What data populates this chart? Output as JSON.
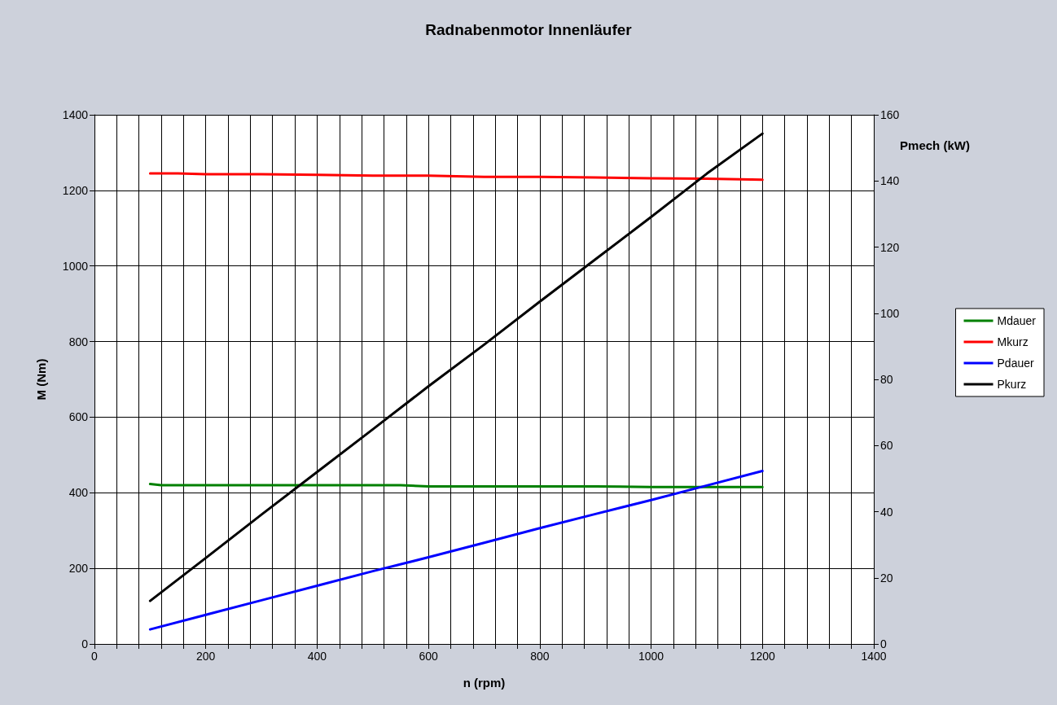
{
  "chart_data": {
    "type": "line",
    "title": "Radnabenmotor Innenläufer",
    "xlabel": "n (rpm)",
    "ylabel": "M (Nm)",
    "y2label": "Pmech (kW)",
    "xlim": [
      0,
      1400
    ],
    "xticks": [
      0,
      {
        "value": 40,
        "label": null
      },
      {
        "value": 80,
        "label": null
      },
      {
        "value": 120,
        "label": null
      },
      {
        "value": 160,
        "label": null
      },
      200,
      {
        "value": 240,
        "label": null
      },
      {
        "value": 280,
        "label": null
      },
      {
        "value": 320,
        "label": null
      },
      {
        "value": 360,
        "label": null
      },
      400,
      {
        "value": 440,
        "label": null
      },
      {
        "value": 480,
        "label": null
      },
      {
        "value": 520,
        "label": null
      },
      {
        "value": 560,
        "label": null
      },
      600,
      {
        "value": 640,
        "label": null
      },
      {
        "value": 680,
        "label": null
      },
      {
        "value": 720,
        "label": null
      },
      {
        "value": 760,
        "label": null
      },
      800,
      {
        "value": 840,
        "label": null
      },
      {
        "value": 880,
        "label": null
      },
      {
        "value": 920,
        "label": null
      },
      {
        "value": 960,
        "label": null
      },
      1000,
      {
        "value": 1040,
        "label": null
      },
      {
        "value": 1080,
        "label": null
      },
      {
        "value": 1120,
        "label": null
      },
      {
        "value": 1160,
        "label": null
      },
      1200,
      {
        "value": 1240,
        "label": null
      },
      {
        "value": 1280,
        "label": null
      },
      {
        "value": 1320,
        "label": null
      },
      {
        "value": 1360,
        "label": null
      },
      1400
    ],
    "ylim": [
      0,
      1400
    ],
    "yticks": [
      0,
      200,
      400,
      600,
      800,
      1000,
      1200,
      1400
    ],
    "y2lim": [
      0,
      160
    ],
    "y2ticks": [
      0,
      20,
      40,
      60,
      80,
      100,
      120,
      140,
      160
    ],
    "grid": true,
    "legend": "right",
    "marker": "none",
    "line_style": "solid",
    "series": [
      {
        "name": "Mdauer",
        "color": "#008000",
        "x": [
          100,
          120,
          200,
          300,
          400,
          500,
          550,
          600,
          700,
          800,
          900,
          1000,
          1100,
          1200
        ],
        "values": [
          423,
          420,
          420,
          420,
          420,
          420,
          420,
          417,
          417,
          417,
          417,
          415,
          415,
          415
        ]
      },
      {
        "name": "Mkurz",
        "color": "#ff0000",
        "x": [
          100,
          150,
          200,
          300,
          400,
          500,
          600,
          700,
          800,
          900,
          1000,
          1100,
          1200
        ],
        "values": [
          1245,
          1245,
          1243,
          1243,
          1241,
          1239,
          1239,
          1236,
          1236,
          1234,
          1232,
          1231,
          1228
        ]
      },
      {
        "name": "Pdauer",
        "color": "#0000ff",
        "axis": "y2",
        "x": [
          100,
          200,
          300,
          400,
          500,
          600,
          700,
          800,
          900,
          1000,
          1100,
          1200
        ],
        "values": [
          4.4,
          8.8,
          13.2,
          17.6,
          22.0,
          26.2,
          30.6,
          35.0,
          39.3,
          43.5,
          47.9,
          52.3
        ]
      },
      {
        "name": "Pkurz",
        "color": "#000000",
        "axis": "y2",
        "x": [
          100,
          200,
          300,
          400,
          500,
          600,
          700,
          800,
          900,
          1000,
          1100,
          1200
        ],
        "values": [
          13.0,
          26.0,
          39.1,
          52.0,
          64.9,
          77.9,
          90.5,
          103.5,
          116.3,
          129.1,
          142.2,
          154.3
        ]
      }
    ]
  }
}
